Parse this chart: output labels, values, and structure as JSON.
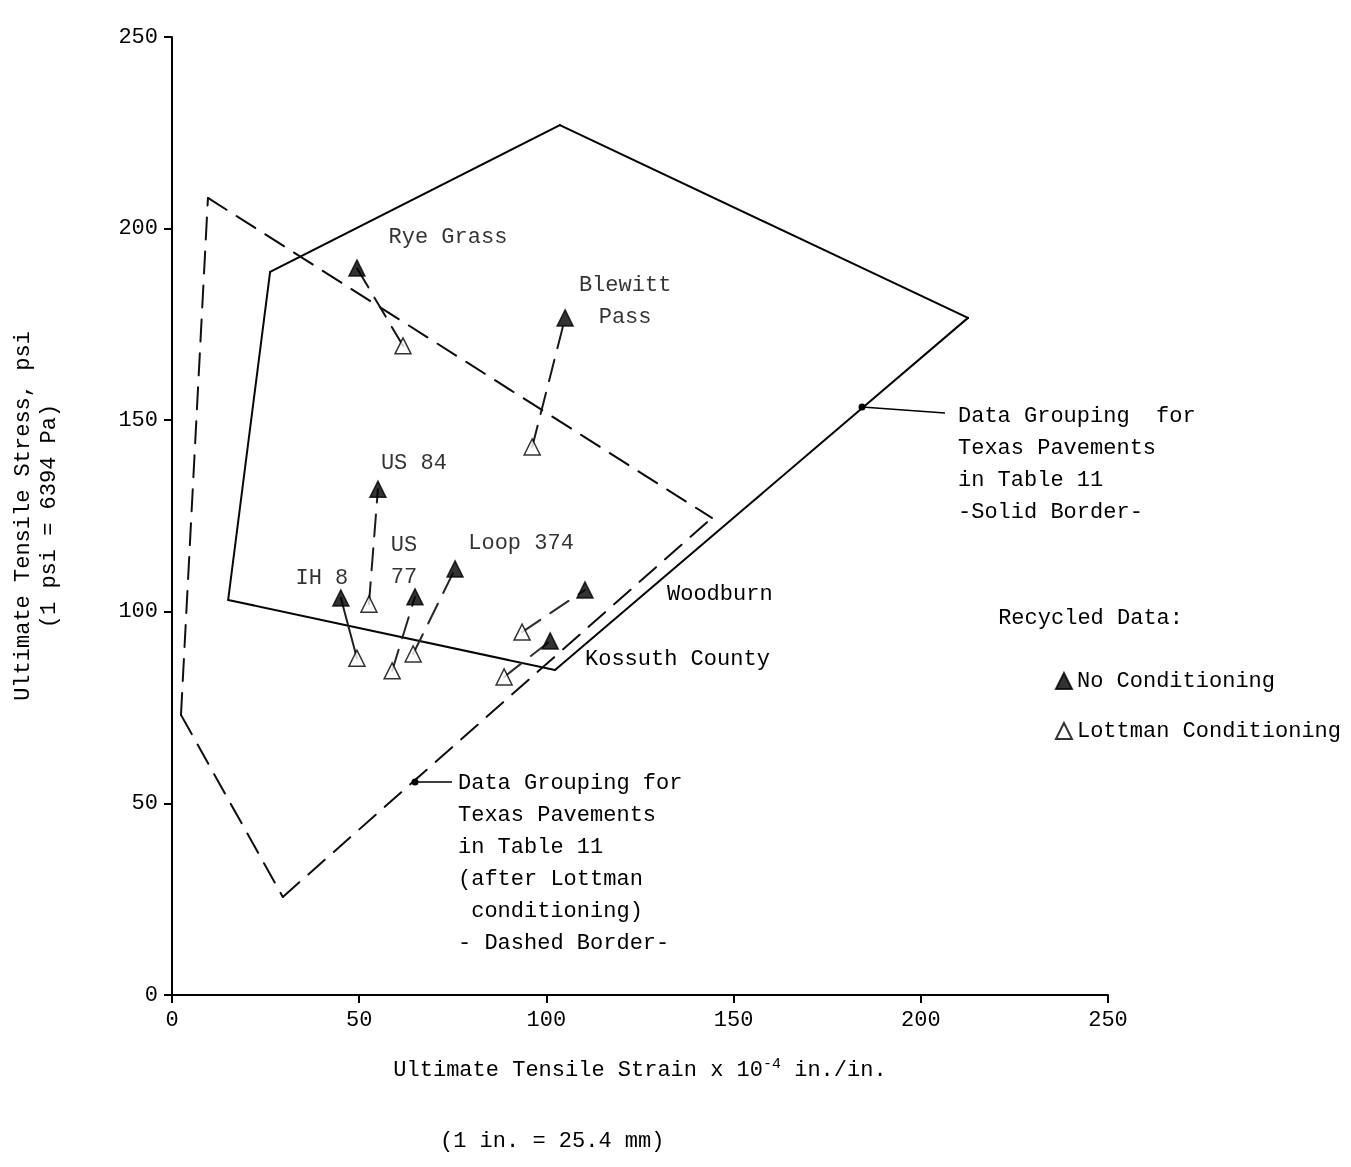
{
  "chart_data": {
    "type": "scatter",
    "xlabel": "Ultimate Tensile Strain x 10$^{-4}$ in./in.",
    "ylabel": "Ultimate Tensile Stress, psi\n(1 psi = 6394 Pa)",
    "legend_title": "Recycled Data:",
    "legend": "right",
    "grid": false,
    "xlim": [
      0,
      250
    ],
    "xticks": [
      0,
      50,
      100,
      150,
      200,
      250
    ],
    "ylim": [
      0,
      250
    ],
    "yticks": [
      0,
      50,
      100,
      150,
      200,
      250
    ],
    "series": [
      {
        "name": "No Conditioning",
        "marker": "triangle",
        "color": "#000000",
        "x": [
          49.4,
          105,
          55,
          45.1,
          64.9,
          75.6,
          110.3,
          101
        ],
        "values": [
          189.7,
          176.7,
          132,
          103.6,
          103.9,
          111.2,
          105.7,
          92.4
        ]
      },
      {
        "name": "Lottman Conditioning",
        "marker": "triangle",
        "color": "#ffffff",
        "x": [
          61.7,
          96.2,
          52.6,
          49.4,
          58.8,
          64.4,
          93.5,
          88.7
        ],
        "values": [
          169.4,
          143,
          102,
          87.9,
          84.6,
          89,
          94.7,
          83
        ]
      },
      {
        "type": "line",
        "line_style": "solid",
        "marker": "none",
        "color": "#000000",
        "x": [
          26.2,
          103.6
        ],
        "values": [
          188.7,
          227
        ]
      },
      {
        "type": "line",
        "line_style": "solid",
        "marker": "none",
        "color": "#020202",
        "x": [
          103.6,
          212.6
        ],
        "values": [
          227,
          176.7
        ]
      },
      {
        "type": "line",
        "line_style": "solid",
        "marker": "none",
        "color": "#040404",
        "x": [
          102.3,
          212.6
        ],
        "values": [
          84.8,
          176.7
        ]
      },
      {
        "type": "line",
        "line_style": "solid",
        "marker": "none",
        "color": "#060606",
        "x": [
          15,
          102.3
        ],
        "values": [
          103.1,
          84.8
        ]
      },
      {
        "type": "line",
        "line_style": "solid",
        "marker": "none",
        "color": "#080808",
        "x": [
          15,
          26.2
        ],
        "values": [
          103.1,
          188.7
        ]
      },
      {
        "type": "line",
        "line_style": "dashed",
        "marker": "none",
        "color": "#0a0a0a",
        "x": [
          9.6,
          144.2
        ],
        "values": [
          208,
          124.5
        ]
      },
      {
        "type": "line",
        "line_style": "dashed",
        "marker": "none",
        "color": "#0c0c0c",
        "x": [
          29.6,
          144.2
        ],
        "values": [
          25.6,
          124.5
        ]
      },
      {
        "type": "line",
        "line_style": "dashed",
        "marker": "none",
        "color": "#0e0e0e",
        "x": [
          2.4,
          29.6
        ],
        "values": [
          73.1,
          25.6
        ]
      },
      {
        "type": "line",
        "line_style": "dashed",
        "marker": "none",
        "color": "#101010",
        "x": [
          2.4,
          9.6
        ],
        "values": [
          73.1,
          208
        ]
      },
      {
        "type": "line",
        "line_style": "dashed",
        "marker": "none",
        "color": "#141414",
        "x": [
          61.7,
          49.4
        ],
        "values": [
          169.4,
          189.7
        ]
      },
      {
        "type": "line",
        "line_style": "dashed",
        "marker": "none",
        "color": "#181818",
        "x": [
          96.2,
          105
        ],
        "values": [
          143,
          176.7
        ]
      },
      {
        "type": "line",
        "line_style": "dashed",
        "marker": "none",
        "color": "#1c1c1c",
        "x": [
          52.6,
          55
        ],
        "values": [
          102,
          132
        ]
      },
      {
        "type": "line",
        "line_style": "solid",
        "marker": "none",
        "color": "#202020",
        "x": [
          49.4,
          45.1
        ],
        "values": [
          87.9,
          103.6
        ]
      },
      {
        "type": "line",
        "line_style": "dashed",
        "marker": "none",
        "color": "#242424",
        "x": [
          58.8,
          64.9
        ],
        "values": [
          84.6,
          103.9
        ]
      },
      {
        "type": "line",
        "line_style": "dashed",
        "marker": "none",
        "color": "#282828",
        "x": [
          64.4,
          75.6
        ],
        "values": [
          89,
          111.2
        ]
      },
      {
        "type": "line",
        "line_style": "dashed",
        "marker": "none",
        "color": "#2c2c2c",
        "x": [
          93.5,
          110.3
        ],
        "values": [
          94.7,
          105.7
        ]
      },
      {
        "type": "line",
        "line_style": "dashed",
        "marker": "none",
        "color": "#303030",
        "x": [
          88.7,
          101
        ],
        "values": [
          83,
          92.4
        ]
      }
    ],
    "annotations": [
      {
        "text": "Rye Grass",
        "x": 49.4,
        "y": 189.7
      },
      {
        "text": "Blewitt\nPass",
        "x": 105,
        "y": 176.7
      },
      {
        "text": "US 84",
        "x": 55,
        "y": 132
      },
      {
        "text": "IH 8",
        "x": 45.1,
        "y": 103.6
      },
      {
        "text": "US\n77",
        "x": 64.9,
        "y": 103.9
      },
      {
        "text": "Loop 374",
        "x": 75.6,
        "y": 111.2
      },
      "Woodburn",
      "Kossuth County",
      "Data Grouping  for\nTexas Pavements\nin Table 11\n-Solid Border-",
      "Data Grouping for\nTexas Pavements\nin Table 11\n(after Lottman\n conditioning)\n- Dashed Border-",
      "(1 in. = 25.4 mm)"
    ]
  }
}
